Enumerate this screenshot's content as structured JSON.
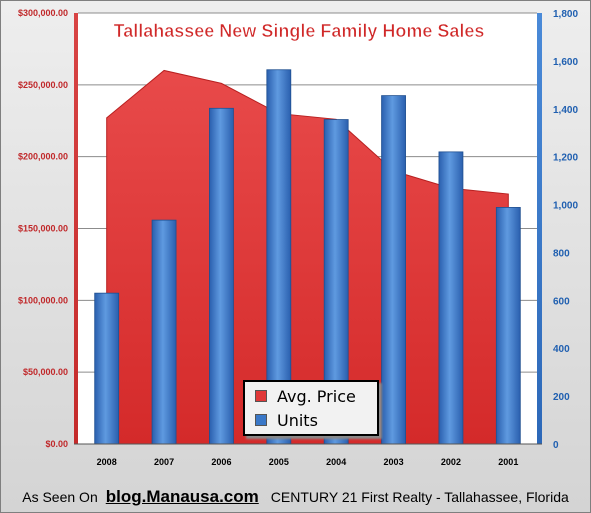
{
  "chart_data": {
    "type": "bar+area",
    "title": "Tallahassee New Single Family Home Sales",
    "categories": [
      "2008",
      "2007",
      "2006",
      "2005",
      "2004",
      "2003",
      "2002",
      "2001"
    ],
    "series": [
      {
        "name": "Avg. Price",
        "type": "area",
        "axis": "left",
        "color": "#e03838",
        "values": [
          227000,
          260000,
          251000,
          230000,
          226000,
          190000,
          178000,
          174000
        ]
      },
      {
        "name": "Units",
        "type": "bar",
        "axis": "right",
        "color": "#3a78c8",
        "values": [
          630,
          935,
          1402,
          1563,
          1355,
          1455,
          1220,
          988
        ]
      }
    ],
    "y_left": {
      "min": 0,
      "max": 300000,
      "ticks": [
        "$0.00",
        "$50,000.00",
        "$100,000.00",
        "$150,000.00",
        "$200,000.00",
        "$250,000.00",
        "$300,000.00"
      ]
    },
    "y_right": {
      "min": 0,
      "max": 1800,
      "ticks": [
        "0",
        "200",
        "400",
        "600",
        "800",
        "1,000",
        "1,200",
        "1,400",
        "1,600",
        "1,800"
      ]
    },
    "grid": true,
    "legend_position": "bottom-center",
    "colors": {
      "left_axis_text": "#c0282a",
      "right_axis_text": "#1f5fb0",
      "title_text": "#d02828"
    }
  },
  "footer": {
    "prefix": "As Seen On",
    "site": "blog.Manausa.com",
    "suffix": "CENTURY 21 First Realty - Tallahassee, Florida"
  }
}
